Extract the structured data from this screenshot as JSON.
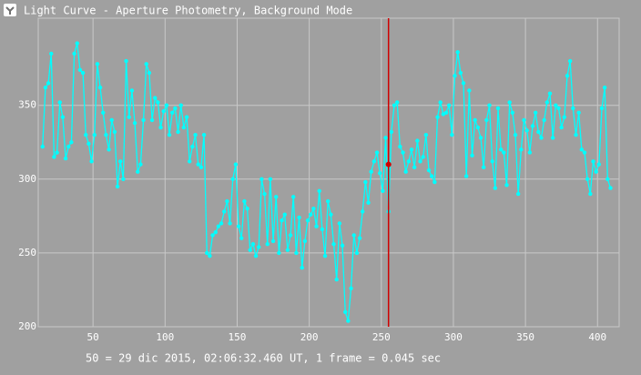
{
  "chart_data": {
    "type": "line",
    "title": "Light Curve - Aperture Photometry, Background Mode",
    "footer": "50 = 29 dic 2015, 02:06:32.460 UT, 1 frame = 0.045 sec",
    "x": [
      15,
      17,
      19,
      21,
      23,
      25,
      27,
      29,
      31,
      33,
      35,
      37,
      39,
      41,
      43,
      45,
      47,
      49,
      51,
      53,
      55,
      57,
      59,
      61,
      63,
      65,
      67,
      69,
      71,
      73,
      75,
      77,
      79,
      81,
      83,
      85,
      87,
      89,
      91,
      93,
      95,
      97,
      99,
      101,
      103,
      105,
      107,
      109,
      111,
      113,
      115,
      117,
      119,
      121,
      123,
      125,
      127,
      129,
      131,
      133,
      135,
      137,
      139,
      141,
      143,
      145,
      147,
      149,
      151,
      153,
      155,
      157,
      159,
      161,
      163,
      165,
      167,
      169,
      171,
      173,
      175,
      177,
      179,
      181,
      183,
      185,
      187,
      189,
      191,
      193,
      195,
      197,
      199,
      201,
      203,
      205,
      207,
      209,
      211,
      213,
      215,
      217,
      219,
      221,
      223,
      225,
      227,
      229,
      231,
      233,
      235,
      237,
      239,
      241,
      243,
      245,
      247,
      249,
      251,
      253,
      255,
      257,
      259,
      261,
      263,
      265,
      267,
      269,
      271,
      273,
      275,
      277,
      279,
      281,
      283,
      285,
      287,
      289,
      291,
      293,
      295,
      297,
      299,
      301,
      303,
      305,
      307,
      309,
      311,
      313,
      315,
      317,
      319,
      321,
      323,
      325,
      327,
      329,
      331,
      333,
      335,
      337,
      339,
      341,
      343,
      345,
      347,
      349,
      351,
      353,
      355,
      357,
      359,
      361,
      363,
      365,
      367,
      369,
      371,
      373,
      375,
      377,
      379,
      381,
      383,
      385,
      387,
      389,
      391,
      393,
      395,
      397,
      399,
      401,
      403,
      405,
      407,
      409
    ],
    "series": [
      {
        "color": "#00ffff",
        "values": [
          322,
          362,
          365,
          385,
          315,
          318,
          352,
          342,
          314,
          322,
          325,
          385,
          392,
          374,
          372,
          330,
          324,
          312,
          330,
          378,
          362,
          345,
          330,
          320,
          340,
          332,
          295,
          312,
          300,
          380,
          342,
          360,
          338,
          305,
          310,
          340,
          378,
          372,
          340,
          355,
          352,
          335,
          346,
          350,
          330,
          345,
          348,
          332,
          350,
          335,
          342,
          312,
          322,
          330,
          310,
          308,
          330,
          250,
          248,
          262,
          264,
          268,
          270,
          278,
          285,
          270,
          300,
          310,
          268,
          260,
          285,
          280,
          252,
          256,
          248,
          254,
          300,
          290,
          256,
          300,
          258,
          288,
          250,
          272,
          276,
          252,
          262,
          288,
          250,
          274,
          240,
          258,
          272,
          276,
          280,
          268,
          292,
          266,
          248,
          285,
          276,
          256,
          232,
          270,
          255,
          210,
          204,
          226,
          262,
          250,
          260,
          278,
          298,
          284,
          305,
          312,
          318,
          304,
          292,
          328,
          278,
          332,
          350,
          352,
          322,
          318,
          305,
          312,
          320,
          308,
          326,
          312,
          315,
          330,
          306,
          302,
          298,
          342,
          352,
          344,
          345,
          350,
          330,
          370,
          386,
          372,
          365,
          302,
          360,
          316,
          340,
          335,
          328,
          308,
          340,
          350,
          312,
          294,
          348,
          320,
          318,
          296,
          352,
          345,
          330,
          290,
          320,
          340,
          333,
          318,
          336,
          345,
          332,
          328,
          340,
          352,
          358,
          328,
          350,
          348,
          335,
          342,
          370,
          380,
          348,
          330,
          345,
          320,
          318,
          300,
          290,
          312,
          305,
          310,
          348,
          362,
          300,
          294
        ]
      }
    ],
    "xlim": [
      12,
      415
    ],
    "ylim": [
      200,
      409
    ],
    "xticks": [
      50,
      100,
      150,
      200,
      250,
      300,
      350,
      400
    ],
    "yticks": [
      200,
      250,
      300,
      350
    ],
    "grid": true,
    "cursor": {
      "x": 255,
      "y": 310,
      "color": "#d00000"
    }
  }
}
